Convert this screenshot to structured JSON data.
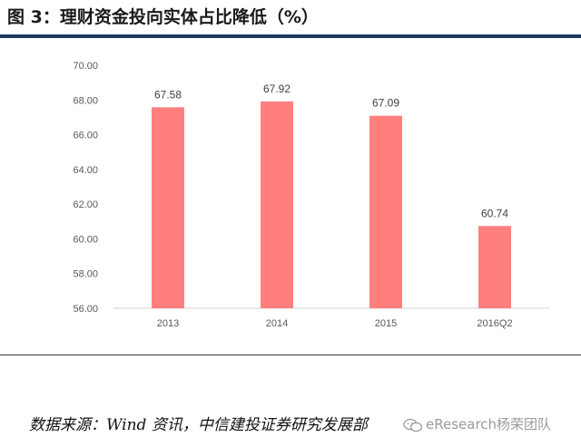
{
  "header": {
    "figure_number": "图 3：",
    "title": "理财资金投向实体占比降低（%）"
  },
  "footer": {
    "source": "数据来源：Wind 资讯，中信建投证券研究发展部",
    "watermark": "eResearch杨荣团队"
  },
  "colors": {
    "bar": "#ff7f7f",
    "rule": "#1b3a5c",
    "axis_text": "#595959"
  },
  "chart_data": {
    "type": "bar",
    "categories": [
      "2013",
      "2014",
      "2015",
      "2016Q2"
    ],
    "values": [
      67.58,
      67.92,
      67.09,
      60.74
    ],
    "data_labels": [
      "67.58",
      "67.92",
      "67.09",
      "60.74"
    ],
    "yticks": [
      "56.00",
      "58.00",
      "60.00",
      "62.00",
      "64.00",
      "66.00",
      "68.00",
      "70.00"
    ],
    "ylim": [
      56,
      70
    ],
    "grid": false,
    "legend": "none"
  }
}
